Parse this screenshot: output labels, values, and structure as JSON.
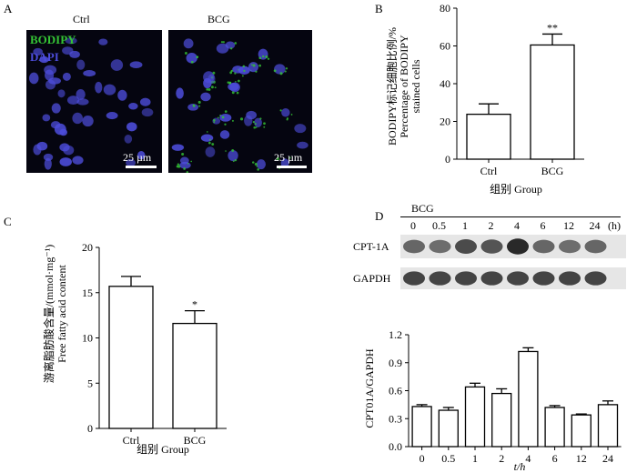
{
  "panels": {
    "a": {
      "letter": "A"
    },
    "b": {
      "letter": "B"
    },
    "c": {
      "letter": "C"
    },
    "d": {
      "letter": "D"
    }
  },
  "micrographs": {
    "ctrl_title": "Ctrl",
    "bcg_title": "BCG",
    "stain_bodipy": "BODIPY",
    "stain_dapi": "DAPI",
    "scale_label": "25 µm",
    "colors": {
      "bodipy": "#35c435",
      "dapi": "#4d4ddb"
    }
  },
  "western_blot": {
    "treatment_label": "BCG",
    "time_unit": "(h)",
    "timepoints": [
      "0",
      "0.5",
      "1",
      "2",
      "4",
      "6",
      "12",
      "24"
    ],
    "bands": [
      "CPT-1A",
      "GAPDH"
    ],
    "cpt1a_intensity": [
      0.55,
      0.5,
      0.75,
      0.68,
      1.0,
      0.55,
      0.5,
      0.55
    ],
    "gapdh_intensity": [
      0.8,
      0.8,
      0.8,
      0.8,
      0.8,
      0.8,
      0.8,
      0.8
    ]
  },
  "chart_data": [
    {
      "id": "B",
      "type": "bar",
      "categories": [
        "Ctrl",
        "BCG"
      ],
      "values": [
        23.8,
        60.5
      ],
      "errors": [
        5.5,
        5.8
      ],
      "significance": [
        "",
        "**"
      ],
      "ylabel_cn": "BODIPY标记细胞比例/%",
      "ylabel_en_1": "Percentage of BODIPY",
      "ylabel_en_2": "stained cells",
      "xlabel": "组别 Group",
      "ylim": [
        0,
        80
      ],
      "yticks": [
        "0",
        "20",
        "40",
        "60",
        "80"
      ]
    },
    {
      "id": "C",
      "type": "bar",
      "categories": [
        "Ctrl",
        "BCG"
      ],
      "values": [
        15.7,
        11.6
      ],
      "errors": [
        1.1,
        1.4
      ],
      "significance": [
        "",
        "*"
      ],
      "ylabel_cn": "游离脂肪酸含量/(mmol·mg⁻¹)",
      "ylabel_en": "Free fatty acid content",
      "xlabel": "组别 Group",
      "ylim": [
        0,
        20
      ],
      "yticks": [
        "0",
        "5",
        "10",
        "15",
        "20"
      ]
    },
    {
      "id": "D",
      "type": "bar",
      "categories": [
        "0",
        "0.5",
        "1",
        "2",
        "4",
        "6",
        "12",
        "24"
      ],
      "values": [
        0.43,
        0.39,
        0.64,
        0.57,
        1.02,
        0.42,
        0.34,
        0.45
      ],
      "errors": [
        0.02,
        0.03,
        0.04,
        0.05,
        0.04,
        0.02,
        0.01,
        0.04
      ],
      "ylabel": "CPT01A/GAPDH",
      "xlabel": "t/h",
      "ylim": [
        0,
        1.2
      ],
      "yticks": [
        "0.0",
        "0.3",
        "0.6",
        "0.9",
        "1.2"
      ]
    }
  ]
}
